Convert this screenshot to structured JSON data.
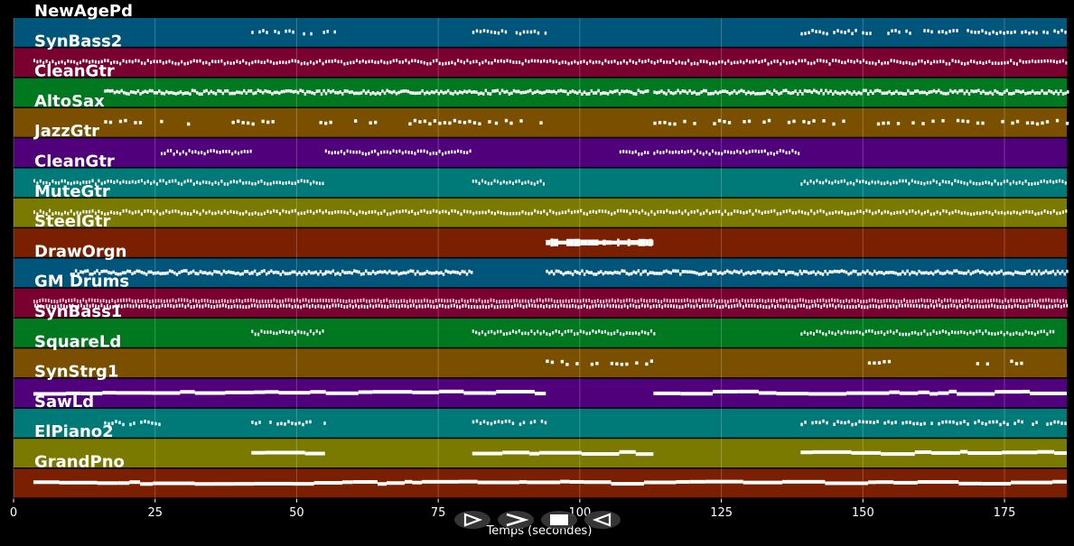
{
  "axis": {
    "xlabel": "Temps (secondes)",
    "xlim": [
      0,
      186
    ],
    "ticks": [
      0,
      25,
      50,
      75,
      100,
      125,
      150,
      175
    ]
  },
  "tracks": [
    {
      "name": "NewAgePd",
      "color": "#00557a",
      "segments": [
        [
          42,
          45
        ],
        [
          46,
          53
        ],
        [
          54,
          57
        ],
        [
          81,
          94
        ],
        [
          139,
          186
        ]
      ],
      "style": "dots"
    },
    {
      "name": "SynBass2",
      "color": "#7a0030",
      "segments": [
        [
          3.5,
          186
        ]
      ],
      "style": "dashes"
    },
    {
      "name": "CleanGtr",
      "color": "#00781f",
      "segments": [
        [
          16,
          26
        ],
        [
          26,
          55
        ],
        [
          55,
          112
        ],
        [
          113,
          186
        ]
      ],
      "style": "solidish"
    },
    {
      "name": "AltoSax",
      "color": "#7a5000",
      "segments": [
        [
          16,
          24
        ],
        [
          25,
          26
        ],
        [
          28,
          46
        ],
        [
          54,
          64
        ],
        [
          68,
          84
        ],
        [
          85,
          93
        ],
        [
          113,
          186
        ]
      ],
      "style": "sparse"
    },
    {
      "name": "JazzGtr",
      "color": "#50007a",
      "segments": [
        [
          26,
          42
        ],
        [
          55,
          81
        ],
        [
          107,
          112
        ],
        [
          113,
          139
        ]
      ],
      "style": "dashes"
    },
    {
      "name": "CleanGtr",
      "color": "#007a78",
      "segments": [
        [
          3.5,
          42
        ],
        [
          42,
          55
        ],
        [
          81,
          94
        ],
        [
          139,
          186
        ]
      ],
      "style": "dashes"
    },
    {
      "name": "MuteGtr",
      "color": "#7a7a00",
      "segments": [
        [
          3.5,
          186
        ]
      ],
      "style": "dashes"
    },
    {
      "name": "SteelGtr",
      "color": "#7a1f00",
      "segments": [
        [
          94,
          107
        ],
        [
          107,
          113
        ]
      ],
      "style": "block"
    },
    {
      "name": "DrawOrgn",
      "color": "#00557a",
      "segments": [
        [
          10,
          42
        ],
        [
          42,
          55
        ],
        [
          55,
          81
        ],
        [
          94,
          113
        ],
        [
          113,
          139
        ],
        [
          139,
          186
        ]
      ],
      "style": "solidish"
    },
    {
      "name": "GM Drums",
      "color": "#7a0030",
      "segments": [
        [
          3.5,
          186
        ]
      ],
      "style": "drums"
    },
    {
      "name": "SynBass1",
      "color": "#00781f",
      "segments": [
        [
          42,
          55
        ],
        [
          81,
          113
        ],
        [
          139,
          184
        ]
      ],
      "style": "dashes"
    },
    {
      "name": "SquareLd",
      "color": "#7a5000",
      "segments": [
        [
          94,
          113
        ],
        [
          150,
          156
        ],
        [
          163,
          165
        ],
        [
          170,
          172
        ],
        [
          176,
          178
        ]
      ],
      "style": "sparse"
    },
    {
      "name": "SynStrg1",
      "color": "#50007a",
      "segments": [
        [
          3.5,
          94
        ],
        [
          113,
          186
        ]
      ],
      "style": "solid"
    },
    {
      "name": "SawLd",
      "color": "#007a78",
      "segments": [
        [
          16,
          26
        ],
        [
          42,
          55
        ],
        [
          81,
          94
        ],
        [
          139,
          186
        ]
      ],
      "style": "dots"
    },
    {
      "name": "ElPiano2",
      "color": "#7a7a00",
      "segments": [
        [
          42,
          55
        ],
        [
          81,
          113
        ],
        [
          139,
          186
        ]
      ],
      "style": "solid"
    },
    {
      "name": "GrandPno",
      "color": "#7a1f00",
      "segments": [
        [
          3.5,
          186
        ]
      ],
      "style": "solid"
    }
  ],
  "controls": [
    {
      "id": "play",
      "icon": "play-outline-icon"
    },
    {
      "id": "forward",
      "icon": "chevron-right-icon"
    },
    {
      "id": "stop",
      "icon": "stop-icon"
    },
    {
      "id": "rewind",
      "icon": "triangle-left-icon"
    }
  ]
}
